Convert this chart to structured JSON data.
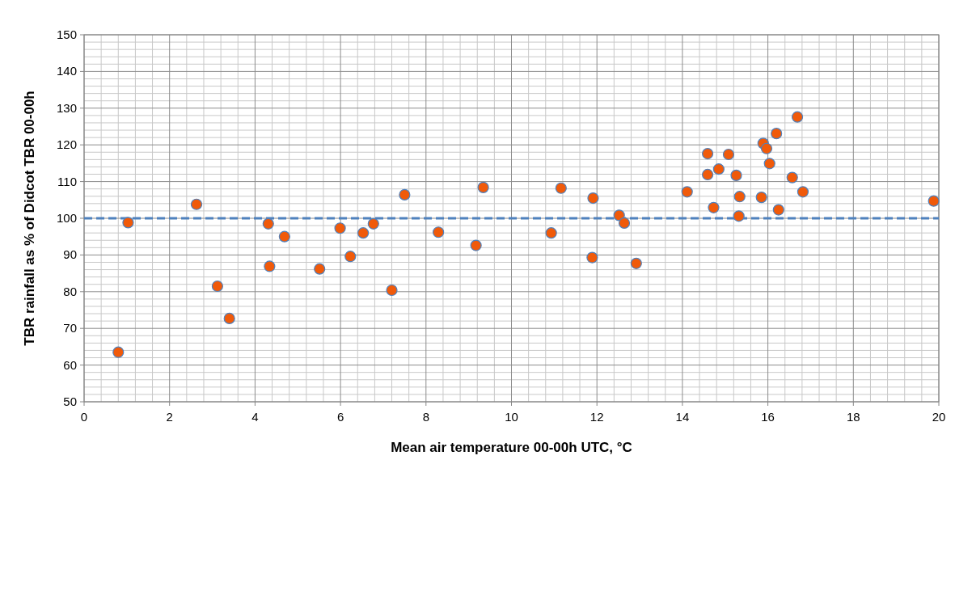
{
  "chart_data": {
    "type": "scatter",
    "xlabel": "Mean air temperature 00-00h UTC, °C",
    "ylabel": "TBR rainfall as % of Didcot TBR 00-00h",
    "xlim": [
      0,
      20
    ],
    "xticks": [
      0,
      2,
      4,
      6,
      8,
      10,
      12,
      14,
      16,
      18,
      20
    ],
    "ylim": [
      50,
      150
    ],
    "yticks": [
      50,
      60,
      70,
      80,
      90,
      100,
      110,
      120,
      130,
      140,
      150
    ],
    "grid": true,
    "marker": "circle",
    "ref_lines": [
      {
        "axis": "y",
        "value": 100,
        "color": "#4f81bd",
        "line_style": "dashed"
      }
    ],
    "series": [
      {
        "color": "#f05a0a",
        "x": [
          0.8,
          1.03,
          2.63,
          3.12,
          3.4,
          4.31,
          4.34,
          4.69,
          5.51,
          5.99,
          6.23,
          6.53,
          6.77,
          7.2,
          7.5,
          8.29,
          9.17,
          9.34,
          10.93,
          11.16,
          11.89,
          11.91,
          12.52,
          12.64,
          12.92,
          14.11,
          14.59,
          14.59,
          14.73,
          14.85,
          15.08,
          15.26,
          15.32,
          15.34,
          15.85,
          15.89,
          15.97,
          16.04,
          16.2,
          16.25,
          16.57,
          16.69,
          16.82,
          19.88
        ],
        "values": [
          63.5,
          98.8,
          103.8,
          81.5,
          72.7,
          98.5,
          86.9,
          95.0,
          86.2,
          97.3,
          89.6,
          96.0,
          98.5,
          80.4,
          106.4,
          96.2,
          92.6,
          108.4,
          96.0,
          108.2,
          89.3,
          105.5,
          100.8,
          98.7,
          87.7,
          107.2,
          117.6,
          111.9,
          102.9,
          113.4,
          117.4,
          111.7,
          100.6,
          105.9,
          105.7,
          120.4,
          119.0,
          114.9,
          123.1,
          102.3,
          111.1,
          127.6,
          107.2,
          104.7
        ]
      }
    ]
  }
}
